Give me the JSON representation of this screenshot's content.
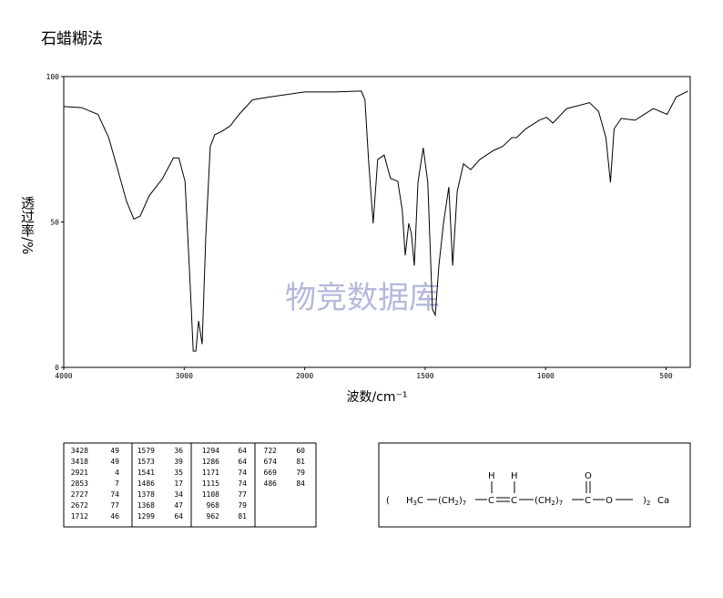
{
  "chart_data": {
    "type": "line",
    "title": "石蜡糊法",
    "x_label": "波数/cm⁻¹",
    "y_label": "透过率/%",
    "watermark": "物竞数据库",
    "x": [
      4000,
      3851,
      3716,
      3627,
      3552,
      3478,
      3418,
      3366,
      3291,
      3179,
      3090,
      3045,
      2993,
      2955,
      2925,
      2903,
      2881,
      2851,
      2821,
      2784,
      2746,
      2694,
      2619,
      2545,
      2433,
      2284,
      2000,
      1879,
      1765,
      1750,
      1735,
      1716,
      1697,
      1670,
      1644,
      1614,
      1595,
      1583,
      1568,
      1557,
      1545,
      1530,
      1508,
      1489,
      1470,
      1458,
      1443,
      1424,
      1402,
      1386,
      1367,
      1341,
      1311,
      1273,
      1216,
      1178,
      1140,
      1121,
      1083,
      1027,
      996,
      970,
      913,
      818,
      780,
      750,
      731,
      716,
      686,
      629,
      553,
      496,
      458,
      409
    ],
    "series": [
      {
        "color": "#000000",
        "values": [
          89.7,
          89.3,
          87,
          79,
          68,
          57,
          51,
          52,
          59,
          65,
          72,
          72,
          64,
          32,
          5.6,
          5.6,
          16,
          8,
          45,
          76,
          80,
          81,
          83,
          87,
          92,
          93,
          94.7,
          94.7,
          95,
          92,
          71.5,
          49.5,
          71.5,
          73,
          65,
          64,
          54,
          38.5,
          49.5,
          46,
          35,
          63.6,
          75.5,
          63.6,
          20,
          18,
          35,
          49.5,
          62,
          35,
          60.5,
          70,
          68,
          71.5,
          74.6,
          76,
          79,
          79,
          82,
          85,
          86,
          84,
          89,
          91,
          88,
          79,
          63.6,
          82,
          85.6,
          85,
          89,
          87,
          93,
          95
        ]
      }
    ],
    "xlim": [
      4000,
      400
    ],
    "xticks": [
      4000,
      3000,
      2000,
      1500,
      1000,
      500
    ],
    "x_scale_break": 2000,
    "x_scale_factor_below_break": 2,
    "ylim": [
      0,
      100
    ],
    "yticks": [
      0,
      50,
      100
    ]
  },
  "peak_table": {
    "columns": [
      [
        [
          3428,
          49
        ],
        [
          3418,
          49
        ],
        [
          2921,
          4
        ],
        [
          2853,
          7
        ],
        [
          2727,
          74
        ],
        [
          2672,
          77
        ],
        [
          1712,
          46
        ]
      ],
      [
        [
          1579,
          36
        ],
        [
          1573,
          39
        ],
        [
          1541,
          35
        ],
        [
          1486,
          17
        ],
        [
          1378,
          34
        ],
        [
          1368,
          47
        ],
        [
          1299,
          64
        ]
      ],
      [
        [
          1294,
          64
        ],
        [
          1286,
          64
        ],
        [
          1171,
          74
        ],
        [
          1115,
          74
        ],
        [
          1108,
          77
        ],
        [
          968,
          79
        ],
        [
          962,
          81
        ]
      ],
      [
        [
          722,
          60
        ],
        [
          674,
          81
        ],
        [
          669,
          79
        ],
        [
          486,
          84
        ]
      ]
    ]
  },
  "structure": {
    "left_paren": "(",
    "methyl_h": "H",
    "methyl_sub": "3",
    "methyl_c": "C",
    "ch2_a": "(CH",
    "ch2_a_sub": "2",
    "ch2_a_close": ")",
    "n_a": "7",
    "c1": "C",
    "h1": "H",
    "c2": "C",
    "h2": "H",
    "ch2_b": "(CH",
    "ch2_b_sub": "2",
    "ch2_b_close": ")",
    "n_b": "7",
    "c3": "C",
    "o_top": "O",
    "o": "O",
    "right_paren": ")",
    "count": "2",
    "metal": "Ca"
  }
}
